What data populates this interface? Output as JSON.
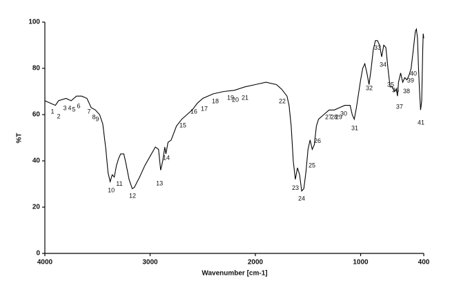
{
  "chart_data": {
    "type": "line",
    "x_label": "Wavenumber [cm-1]",
    "y_label": "%T",
    "xlim": [
      4000,
      400
    ],
    "ylim": [
      0,
      100
    ],
    "xticks": [
      4000,
      3000,
      2000,
      1000,
      400
    ],
    "yticks": [
      0,
      20,
      40,
      60,
      80,
      100
    ],
    "grid": false,
    "x": [
      4000,
      3950,
      3900,
      3870,
      3800,
      3750,
      3700,
      3650,
      3600,
      3560,
      3520,
      3480,
      3450,
      3420,
      3400,
      3380,
      3360,
      3340,
      3320,
      3300,
      3280,
      3250,
      3230,
      3200,
      3170,
      3150,
      3100,
      3050,
      3000,
      2950,
      2920,
      2900,
      2880,
      2860,
      2850,
      2830,
      2800,
      2750,
      2700,
      2650,
      2600,
      2550,
      2500,
      2400,
      2300,
      2200,
      2100,
      2000,
      1900,
      1800,
      1750,
      1700,
      1680,
      1660,
      1640,
      1620,
      1600,
      1580,
      1560,
      1540,
      1520,
      1500,
      1480,
      1460,
      1440,
      1420,
      1400,
      1350,
      1300,
      1250,
      1200,
      1150,
      1100,
      1080,
      1060,
      1040,
      1000,
      980,
      960,
      940,
      920,
      900,
      880,
      860,
      840,
      820,
      800,
      780,
      760,
      740,
      720,
      700,
      680,
      660,
      650,
      640,
      620,
      600,
      580,
      560,
      540,
      520,
      500,
      480,
      470,
      460,
      450,
      440,
      430,
      420,
      410,
      405,
      400
    ],
    "series": [
      {
        "name": "spectrum",
        "color": "#000000",
        "values": [
          66,
          65,
          64,
          66,
          67,
          66,
          68,
          68,
          67,
          63,
          62,
          60,
          56,
          45,
          35,
          31,
          34,
          33,
          38,
          41,
          43,
          43,
          39,
          32,
          28,
          28.5,
          33,
          38,
          42,
          46,
          45,
          36,
          40,
          46,
          43,
          48,
          49,
          55,
          58,
          60,
          62,
          65,
          67,
          69,
          70,
          70.5,
          72,
          73,
          74,
          73,
          71,
          68,
          64,
          55,
          40,
          32,
          37,
          34,
          27,
          28,
          35,
          45,
          49,
          45,
          47,
          55,
          58,
          60,
          62,
          62,
          63,
          64,
          64,
          60,
          58,
          63,
          75,
          80,
          82,
          78,
          73,
          80,
          88,
          92,
          92,
          90,
          85,
          90,
          89,
          80,
          72,
          72,
          70,
          71,
          68,
          74,
          78,
          74,
          76,
          75,
          77,
          80,
          88,
          96,
          97,
          93,
          80,
          70,
          62,
          66,
          88,
          95,
          93
        ]
      }
    ],
    "peaks": [
      {
        "label": "1",
        "x": 3928,
        "y": 61.2
      },
      {
        "label": "2",
        "x": 3869,
        "y": 59.1
      },
      {
        "label": "3",
        "x": 3810,
        "y": 62.7
      },
      {
        "label": "4",
        "x": 3764,
        "y": 62.7
      },
      {
        "label": "5",
        "x": 3725,
        "y": 62.1
      },
      {
        "label": "6",
        "x": 3679,
        "y": 63.6
      },
      {
        "label": "7",
        "x": 3580,
        "y": 61.2
      },
      {
        "label": "8",
        "x": 3534,
        "y": 58.8
      },
      {
        "label": "9",
        "x": 3502,
        "y": 57.9
      },
      {
        "label": "10",
        "x": 3370,
        "y": 27.2
      },
      {
        "label": "11",
        "x": 3292,
        "y": 29.9
      },
      {
        "label": "12",
        "x": 3167,
        "y": 24.8
      },
      {
        "label": "13",
        "x": 2911,
        "y": 30.1
      },
      {
        "label": "14",
        "x": 2846,
        "y": 41.2
      },
      {
        "label": "15",
        "x": 2689,
        "y": 55.2
      },
      {
        "label": "16",
        "x": 2584,
        "y": 61.2
      },
      {
        "label": "17",
        "x": 2485,
        "y": 62.4
      },
      {
        "label": "18",
        "x": 2380,
        "y": 65.7
      },
      {
        "label": "19",
        "x": 2236,
        "y": 67.2
      },
      {
        "label": "20",
        "x": 2190,
        "y": 66.3
      },
      {
        "label": "21",
        "x": 2098,
        "y": 67.2
      },
      {
        "label": "22",
        "x": 1744,
        "y": 65.7
      },
      {
        "label": "23",
        "x": 1620,
        "y": 28.1
      },
      {
        "label": "24",
        "x": 1561,
        "y": 23.6
      },
      {
        "label": "25",
        "x": 1462,
        "y": 37.9
      },
      {
        "label": "26",
        "x": 1410,
        "y": 48.4
      },
      {
        "label": "27",
        "x": 1305,
        "y": 58.8
      },
      {
        "label": "28",
        "x": 1252,
        "y": 58.8
      },
      {
        "label": "29",
        "x": 1207,
        "y": 58.8
      },
      {
        "label": "30",
        "x": 1161,
        "y": 60.3
      },
      {
        "label": "31",
        "x": 1056,
        "y": 54.0
      },
      {
        "label": "32",
        "x": 918,
        "y": 71.3
      },
      {
        "label": "33",
        "x": 839,
        "y": 88.7
      },
      {
        "label": "34",
        "x": 787,
        "y": 81.5
      },
      {
        "label": "35",
        "x": 715,
        "y": 72.8
      },
      {
        "label": "36",
        "x": 669,
        "y": 70.4
      },
      {
        "label": "37",
        "x": 630,
        "y": 63.3
      },
      {
        "label": "38",
        "x": 564,
        "y": 69.9
      },
      {
        "label": "39",
        "x": 525,
        "y": 74.6
      },
      {
        "label": "40",
        "x": 498,
        "y": 77.6
      },
      {
        "label": "41",
        "x": 426,
        "y": 56.4
      }
    ]
  }
}
